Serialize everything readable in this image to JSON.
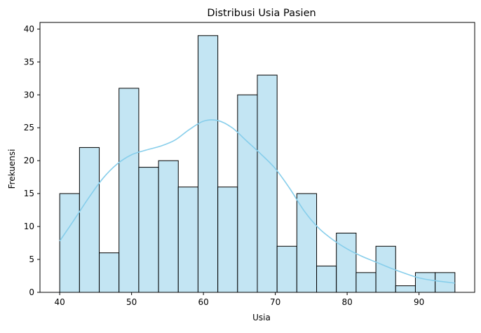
{
  "chart_data": {
    "type": "histogram",
    "title": "Distribusi Usia Pasien",
    "xlabel": "Usia",
    "ylabel": "Frekuensi",
    "xlim": [
      37.25,
      97.75
    ],
    "ylim": [
      0,
      41
    ],
    "xticks": [
      40,
      50,
      60,
      70,
      80,
      90
    ],
    "yticks": [
      0,
      5,
      10,
      15,
      20,
      25,
      30,
      35,
      40
    ],
    "bin_edges": [
      40,
      42.75,
      45.5,
      48.25,
      51,
      53.75,
      56.5,
      59.25,
      62,
      64.75,
      67.5,
      70.25,
      73,
      75.75,
      78.5,
      81.25,
      84,
      86.75,
      89.5,
      92.25,
      95
    ],
    "values": [
      15,
      22,
      6,
      31,
      19,
      20,
      16,
      39,
      16,
      30,
      33,
      7,
      15,
      4,
      9,
      3,
      7,
      1,
      3,
      3
    ],
    "bar_color": "#c3e5f3",
    "bar_edge_color": "#000000",
    "kde": {
      "color": "#87ceeb",
      "x": [
        40,
        42,
        44,
        46,
        48,
        50,
        52,
        54,
        56,
        58,
        60,
        62,
        64,
        66,
        68,
        70,
        72,
        74,
        76,
        78,
        80,
        82,
        84,
        86,
        88,
        90,
        92,
        95
      ],
      "y": [
        7.8,
        11.0,
        14.3,
        17.3,
        19.5,
        20.9,
        21.6,
        22.2,
        23.1,
        24.7,
        26.0,
        26.1,
        25.0,
        23.0,
        21.0,
        18.8,
        15.8,
        12.4,
        9.8,
        8.0,
        6.6,
        5.5,
        4.6,
        3.7,
        2.9,
        2.2,
        1.8,
        1.4
      ]
    }
  }
}
